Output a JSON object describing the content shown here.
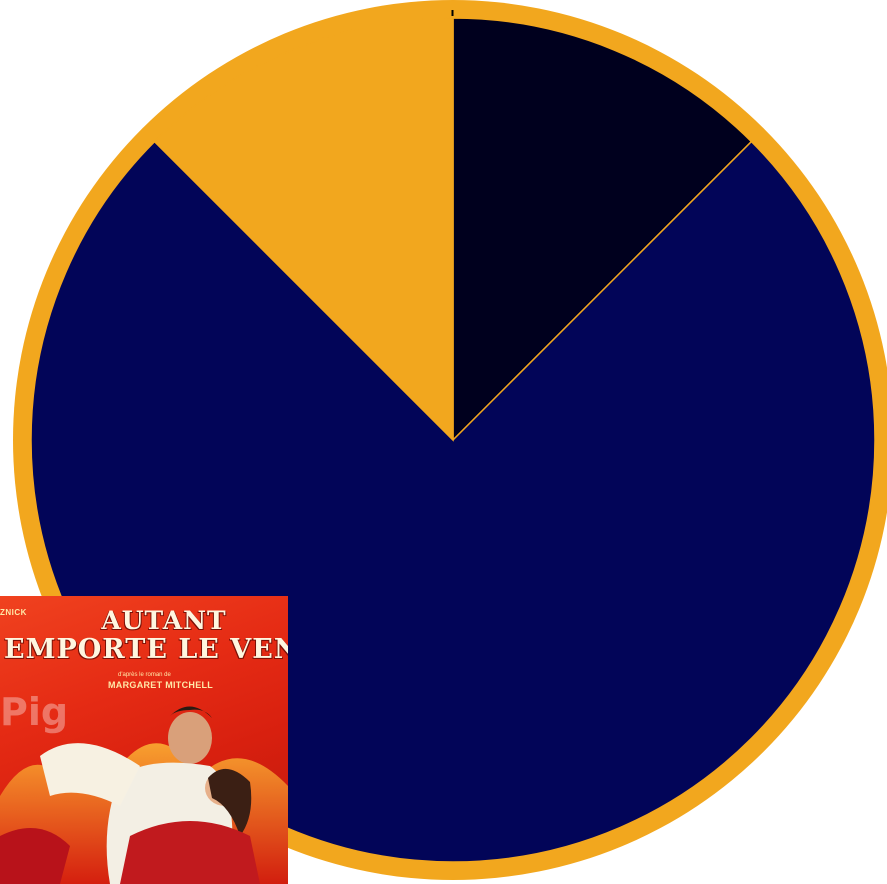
{
  "wheel": {
    "colors": {
      "rim": "#F2A71E",
      "segment_gold": "#F2A71E",
      "segment_navy": "#020558",
      "segment_black": "#00001E",
      "marker": "#000000"
    },
    "segments": [
      {
        "name": "black-segment",
        "color": "#00001E",
        "fraction": 0.125
      },
      {
        "name": "navy-segment",
        "color": "#020558",
        "fraction": 0.75
      },
      {
        "name": "gold-segment",
        "color": "#F2A71E",
        "fraction": 0.125
      }
    ]
  },
  "poster": {
    "credit": "ZNICK",
    "title_line1": "AUTANT",
    "title_line2": "EMPORTE LE VENT",
    "subline": "d'après le roman de",
    "author": "MARGARET MITCHELL",
    "watermark": "Pig"
  }
}
